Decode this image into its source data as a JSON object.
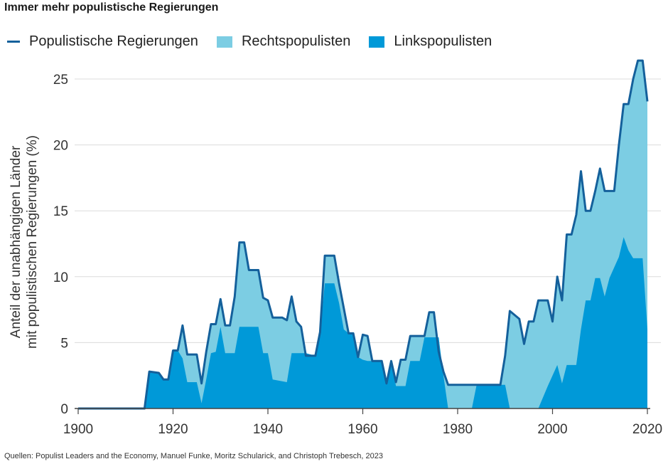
{
  "chart_data": {
    "type": "area",
    "title": "Immer mehr populistische Regierungen",
    "ylabel": [
      "Anteil der unabhängigen Länder",
      "mit populistischen Regierungen (%)"
    ],
    "xlabel": "",
    "xlim": [
      1900,
      2020
    ],
    "ylim": [
      0,
      25
    ],
    "xticks": [
      1900,
      1920,
      1940,
      1960,
      1980,
      2000,
      2020
    ],
    "yticks": [
      0,
      5,
      10,
      15,
      20,
      25
    ],
    "grid": true,
    "legend": "top",
    "source": "Quellen: Populist Leaders and the Economy, Manuel Funke, Moritz Schularick, and Christoph Trebesch, 2023",
    "colors": {
      "total": "#14609b",
      "right": "#7ccde3",
      "left": "#0099d8"
    },
    "series": [
      {
        "name": "Populistische Regierungen",
        "style": "line",
        "x": [
          1900,
          1914,
          1915,
          1917,
          1918,
          1919,
          1920,
          1921,
          1922,
          1923,
          1925,
          1926,
          1927,
          1928,
          1929,
          1930,
          1931,
          1932,
          1933,
          1934,
          1935,
          1936,
          1938,
          1939,
          1940,
          1941,
          1943,
          1944,
          1945,
          1946,
          1947,
          1948,
          1950,
          1951,
          1952,
          1954,
          1955,
          1956,
          1957,
          1958,
          1959,
          1960,
          1961,
          1962,
          1964,
          1965,
          1966,
          1967,
          1968,
          1969,
          1970,
          1973,
          1974,
          1975,
          1976,
          1977,
          1978,
          1989,
          1990,
          1991,
          1993,
          1994,
          1995,
          1996,
          1997,
          1999,
          2000,
          2001,
          2002,
          2003,
          2004,
          2005,
          2006,
          2007,
          2008,
          2009,
          2010,
          2011,
          2013,
          2014,
          2015,
          2016,
          2017,
          2018,
          2019,
          2020
        ],
        "y": [
          0,
          0,
          2.8,
          2.7,
          2.2,
          2.2,
          4.4,
          4.4,
          6.3,
          4.1,
          4.1,
          1.9,
          4.3,
          6.4,
          6.4,
          8.3,
          6.3,
          6.3,
          8.5,
          12.6,
          12.6,
          10.5,
          10.5,
          8.4,
          8.2,
          6.9,
          6.9,
          6.7,
          8.5,
          6.6,
          6.2,
          4.0,
          4.0,
          5.8,
          11.6,
          11.6,
          9.5,
          7.6,
          5.7,
          5.7,
          3.9,
          5.6,
          5.5,
          3.6,
          3.6,
          1.9,
          3.6,
          2.0,
          3.7,
          3.7,
          5.5,
          5.5,
          7.3,
          7.3,
          4.3,
          2.8,
          1.8,
          1.8,
          4.0,
          7.4,
          6.8,
          4.9,
          6.6,
          6.6,
          8.2,
          8.2,
          6.6,
          10.0,
          8.2,
          13.2,
          13.2,
          14.7,
          18.0,
          15.0,
          15.0,
          16.5,
          18.2,
          16.5,
          16.5,
          20.0,
          23.1,
          23.1,
          25.0,
          26.4,
          26.4,
          23.3
        ]
      },
      {
        "name": "Rechtspopulisten",
        "style": "area"
      },
      {
        "name": "Linkspopulisten",
        "style": "area",
        "x": [
          1900,
          1914,
          1915,
          1917,
          1918,
          1919,
          1920,
          1921,
          1922,
          1923,
          1925,
          1926,
          1927,
          1928,
          1929,
          1930,
          1931,
          1933,
          1934,
          1938,
          1939,
          1940,
          1941,
          1944,
          1945,
          1948,
          1950,
          1951,
          1952,
          1954,
          1955,
          1956,
          1957,
          1958,
          1959,
          1960,
          1961,
          1964,
          1965,
          1966,
          1967,
          1969,
          1970,
          1972,
          1973,
          1976,
          1977,
          1978,
          1983,
          1984,
          1990,
          1991,
          1997,
          1999,
          2001,
          2002,
          2003,
          2004,
          2005,
          2006,
          2007,
          2008,
          2009,
          2010,
          2011,
          2012,
          2014,
          2015,
          2016,
          2017,
          2019,
          2020
        ],
        "y": [
          0,
          0,
          2.8,
          2.7,
          2.2,
          2.2,
          4.4,
          4.4,
          3.8,
          2.0,
          2.0,
          0.4,
          2.2,
          4.2,
          4.3,
          6.2,
          4.2,
          4.2,
          6.2,
          6.2,
          4.2,
          4.2,
          2.2,
          2.0,
          4.2,
          4.2,
          4.0,
          5.8,
          9.5,
          9.5,
          8.0,
          6.0,
          5.7,
          5.7,
          3.9,
          3.7,
          3.6,
          3.6,
          1.9,
          3.6,
          1.7,
          1.7,
          3.6,
          3.6,
          5.4,
          5.4,
          2.5,
          0,
          0,
          1.8,
          1.8,
          0,
          0,
          1.7,
          3.3,
          1.9,
          3.3,
          3.3,
          3.3,
          6.0,
          8.2,
          8.2,
          9.9,
          9.9,
          8.5,
          9.9,
          11.5,
          13.0,
          12.0,
          11.4,
          11.4,
          6.0
        ]
      }
    ]
  }
}
